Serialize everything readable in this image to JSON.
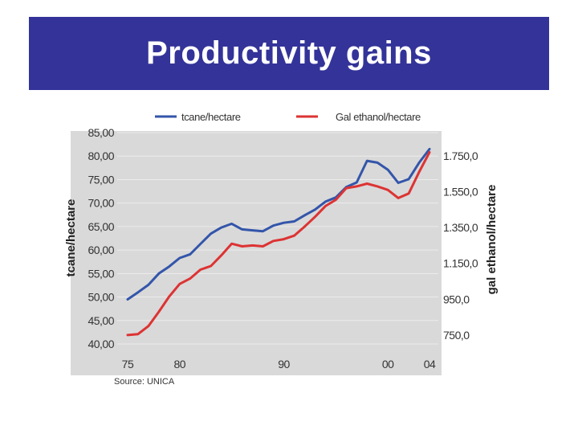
{
  "slide": {
    "title": "Productivity gains",
    "background_color": "#ffffff",
    "banner_color": "#333399"
  },
  "chart_data": {
    "type": "line",
    "title": "",
    "source": "Source: UNICA",
    "grid": true,
    "plot_background": "#d9d9d9",
    "legend_position": "top",
    "xlabel": "",
    "x_ticks": [
      {
        "value": 1975,
        "label": "75"
      },
      {
        "value": 1980,
        "label": "80"
      },
      {
        "value": 1990,
        "label": "90"
      },
      {
        "value": 2000,
        "label": "00"
      },
      {
        "value": 2004,
        "label": "04"
      }
    ],
    "xlim": [
      1974,
      2005
    ],
    "y_left": {
      "label": "tcane/hectare",
      "lim": [
        40,
        85
      ],
      "ticks": [
        "40,00",
        "45,00",
        "50,00",
        "55,00",
        "60,00",
        "65,00",
        "70,00",
        "75,00",
        "80,00",
        "85,00"
      ]
    },
    "y_right": {
      "label": "gal ethanol/hectare",
      "lim": [
        700,
        1880
      ],
      "ticks": [
        {
          "value": 750,
          "label": "750,0"
        },
        {
          "value": 950,
          "label": "950,0"
        },
        {
          "value": 1150,
          "label": "1.150,0"
        },
        {
          "value": 1350,
          "label": "1.350,0"
        },
        {
          "value": 1550,
          "label": "1.550,0"
        },
        {
          "value": 1750,
          "label": "1.750,0"
        }
      ]
    },
    "series": [
      {
        "name": "tcane/hectare",
        "axis": "left",
        "color": "#3355aa",
        "x": [
          1975,
          1976,
          1977,
          1978,
          1979,
          1980,
          1981,
          1982,
          1983,
          1984,
          1985,
          1986,
          1987,
          1988,
          1989,
          1990,
          1991,
          1992,
          1993,
          1994,
          1995,
          1996,
          1997,
          1998,
          1999,
          2000,
          2001,
          2002,
          2003,
          2004
        ],
        "values": [
          49.5,
          51.0,
          52.6,
          55.0,
          56.5,
          58.3,
          59.1,
          61.3,
          63.5,
          64.8,
          65.6,
          64.4,
          64.2,
          64.0,
          65.2,
          65.8,
          66.1,
          67.4,
          68.6,
          70.3,
          71.2,
          73.4,
          74.4,
          79.0,
          78.6,
          77.1,
          74.3,
          75.1,
          78.6,
          81.5
        ]
      },
      {
        "name": "Gal ethanol/hectare",
        "axis": "right",
        "color": "#dd3333",
        "x": [
          1975,
          1976,
          1977,
          1978,
          1979,
          1980,
          1981,
          1982,
          1983,
          1984,
          1985,
          1986,
          1987,
          1988,
          1989,
          1990,
          1991,
          1992,
          1993,
          1994,
          1995,
          1996,
          1997,
          1998,
          1999,
          2000,
          2001,
          2002,
          2003,
          2004
        ],
        "values": [
          750,
          755,
          800,
          880,
          965,
          1035,
          1065,
          1115,
          1135,
          1195,
          1260,
          1245,
          1250,
          1245,
          1275,
          1285,
          1305,
          1355,
          1410,
          1470,
          1505,
          1570,
          1580,
          1595,
          1580,
          1560,
          1515,
          1540,
          1660,
          1770
        ]
      }
    ]
  }
}
